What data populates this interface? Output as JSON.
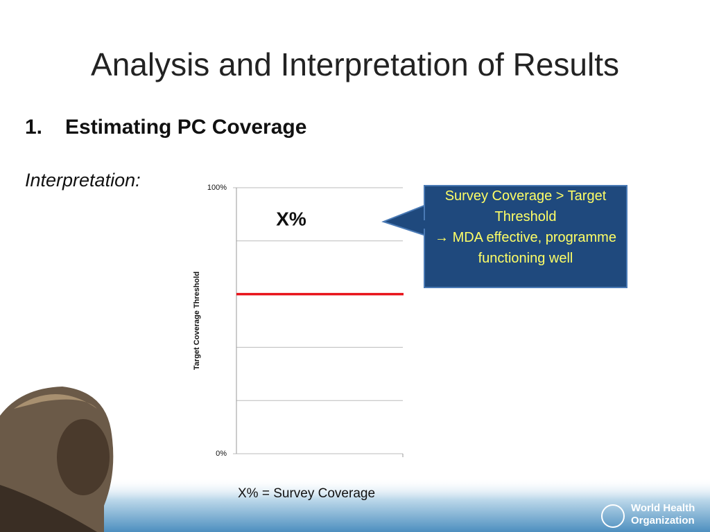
{
  "title": "Analysis and Interpretation of Results",
  "heading": {
    "number": "1.",
    "text": "Estimating PC Coverage"
  },
  "interpretation_label": "Interpretation:",
  "chart_data": {
    "type": "threshold",
    "ylabel": "Target Coverage Threshold",
    "ylim": [
      0,
      100
    ],
    "yticks": [
      {
        "value": 0,
        "label": "0%"
      },
      {
        "value": 100,
        "label": "100%"
      }
    ],
    "grid_values": [
      20,
      40,
      60,
      80
    ],
    "threshold": 60,
    "threshold_color": "#e8141b",
    "annotation": "X%"
  },
  "callout": {
    "lines": [
      "Survey Coverage > Target Threshold",
      "→ MDA effective, programme functioning well"
    ]
  },
  "footnote": "X% = Survey Coverage",
  "logo": [
    "World Health",
    "Organization"
  ]
}
